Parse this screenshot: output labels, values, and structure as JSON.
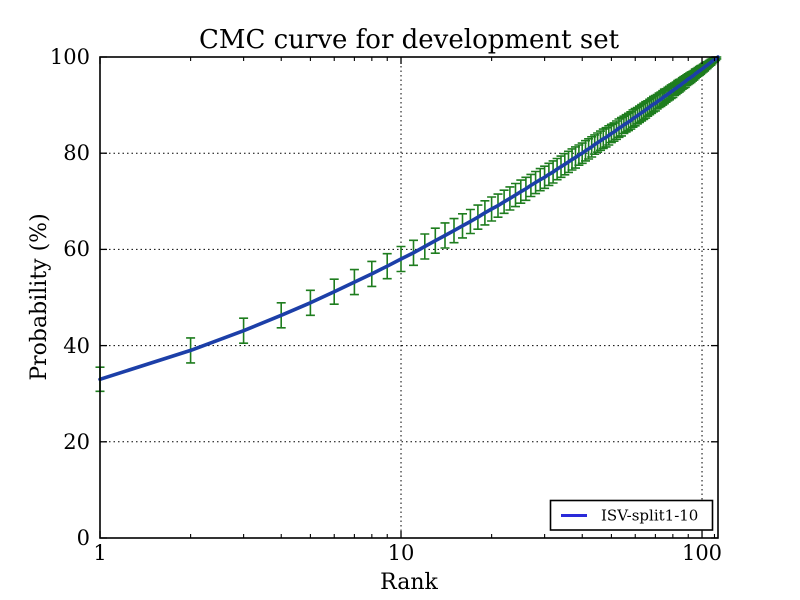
{
  "chart_data": {
    "type": "line",
    "title": "CMC curve for development set",
    "xlabel": "Rank",
    "ylabel": "Probability (%)",
    "x_scale": "log",
    "xlim": [
      1,
      113
    ],
    "ylim": [
      0,
      100
    ],
    "x_ticks": [
      1,
      10,
      100
    ],
    "x_minor_ticks": [
      2,
      3,
      4,
      5,
      6,
      7,
      8,
      9,
      20,
      30,
      40,
      50,
      60,
      70,
      80,
      90,
      110
    ],
    "y_ticks": [
      0,
      20,
      40,
      60,
      80,
      100
    ],
    "grid": true,
    "grid_style": "dotted",
    "legend_position": "lower right",
    "colors": {
      "line": "#1c3fa8",
      "legend_line": "#2a2ad9",
      "error_bar": "#1e7d1e",
      "axes": "#000000",
      "grid": "#000000",
      "background": "#ffffff"
    },
    "series": [
      {
        "name": "ISV-split1-10",
        "x": [
          1,
          2,
          3,
          4,
          5,
          6,
          7,
          8,
          9,
          10,
          11,
          12,
          13,
          14,
          15,
          16,
          17,
          18,
          19,
          20,
          21,
          22,
          23,
          24,
          25,
          26,
          27,
          28,
          29,
          30,
          31,
          32,
          33,
          34,
          35,
          36,
          37,
          38,
          39,
          40,
          41,
          42,
          43,
          44,
          45,
          46,
          47,
          48,
          49,
          50,
          51,
          52,
          53,
          54,
          55,
          56,
          57,
          58,
          59,
          60,
          61,
          62,
          63,
          64,
          65,
          66,
          67,
          68,
          69,
          70,
          71,
          72,
          73,
          74,
          75,
          76,
          77,
          78,
          79,
          80,
          81,
          82,
          83,
          84,
          85,
          86,
          87,
          88,
          89,
          90,
          91,
          92,
          93,
          94,
          95,
          96,
          97,
          98,
          99,
          100,
          101,
          102,
          103,
          104,
          105,
          106,
          107,
          108,
          109,
          110,
          111,
          112,
          113
        ],
        "y": [
          33.0,
          39.0,
          43.1,
          46.3,
          48.9,
          51.2,
          53.2,
          54.9,
          56.5,
          58.0,
          59.3,
          60.6,
          61.8,
          62.9,
          63.9,
          64.9,
          65.8,
          66.7,
          67.6,
          68.4,
          69.1,
          69.9,
          70.6,
          71.3,
          72.0,
          72.6,
          73.3,
          73.9,
          74.5,
          75.0,
          75.6,
          76.1,
          76.7,
          77.2,
          77.7,
          78.2,
          78.7,
          79.1,
          79.6,
          80.0,
          80.5,
          80.9,
          81.3,
          81.8,
          82.2,
          82.6,
          83.0,
          83.3,
          83.7,
          84.1,
          84.4,
          84.8,
          85.2,
          85.5,
          85.9,
          86.2,
          86.5,
          86.8,
          87.2,
          87.5,
          87.8,
          88.1,
          88.4,
          88.7,
          89.0,
          89.3,
          89.6,
          89.9,
          90.2,
          90.4,
          90.7,
          91.0,
          91.2,
          91.5,
          91.8,
          92.0,
          92.3,
          92.5,
          92.8,
          93.0,
          93.3,
          93.5,
          93.8,
          94.0,
          94.2,
          94.5,
          94.7,
          94.9,
          95.2,
          95.4,
          95.6,
          95.8,
          96.0,
          96.2,
          96.5,
          96.7,
          96.9,
          97.1,
          97.3,
          97.5,
          97.7,
          97.9,
          98.1,
          98.3,
          98.5,
          98.7,
          98.9,
          99.1,
          99.3,
          99.4,
          99.6,
          99.8,
          100.0
        ],
        "yerr": [
          2.5,
          2.6,
          2.6,
          2.6,
          2.6,
          2.6,
          2.6,
          2.6,
          2.6,
          2.6,
          2.6,
          2.6,
          2.6,
          2.6,
          2.5,
          2.5,
          2.5,
          2.5,
          2.5,
          2.5,
          2.4,
          2.4,
          2.4,
          2.4,
          2.4,
          2.4,
          2.3,
          2.3,
          2.3,
          2.3,
          2.3,
          2.3,
          2.2,
          2.2,
          2.2,
          2.2,
          2.2,
          2.2,
          2.1,
          2.1,
          2.1,
          2.1,
          2.1,
          2.0,
          2.0,
          2.0,
          2.0,
          2.0,
          2.0,
          1.9,
          1.9,
          1.9,
          1.9,
          1.9,
          1.8,
          1.8,
          1.8,
          1.8,
          1.8,
          1.8,
          1.7,
          1.7,
          1.7,
          1.7,
          1.7,
          1.6,
          1.6,
          1.6,
          1.6,
          1.6,
          1.5,
          1.5,
          1.5,
          1.5,
          1.5,
          1.4,
          1.4,
          1.4,
          1.4,
          1.4,
          1.3,
          1.3,
          1.3,
          1.3,
          1.2,
          1.2,
          1.2,
          1.2,
          1.1,
          1.1,
          1.1,
          1.1,
          1.0,
          1.0,
          1.0,
          0.9,
          0.9,
          0.9,
          0.9,
          0.8,
          0.8,
          0.8,
          0.7,
          0.7,
          0.6,
          0.6,
          0.6,
          0.5,
          0.4,
          0.4,
          0.3,
          0.2,
          0.0
        ]
      }
    ]
  }
}
